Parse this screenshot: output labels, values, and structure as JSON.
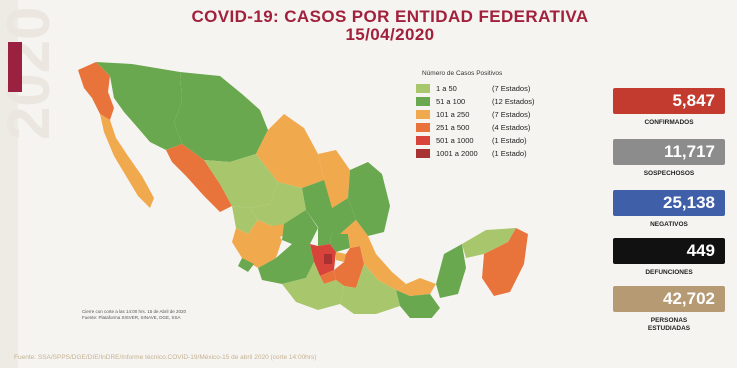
{
  "title_line1": "COVID-19: CASOS POR ENTIDAD FEDERATIVA",
  "title_line2": "15/04/2020",
  "legend": {
    "title": "Número de Casos Positivos",
    "items": [
      {
        "range": "1 a 50",
        "count": "(7 Estados)",
        "color": "#a8c66c"
      },
      {
        "range": "51 a 100",
        "count": "(12 Estados)",
        "color": "#6aa84f"
      },
      {
        "range": "101 a 250",
        "count": "(7 Estados)",
        "color": "#f1a94e"
      },
      {
        "range": "251 a 500",
        "count": "(4 Estados)",
        "color": "#e8743b"
      },
      {
        "range": "501 a 1000",
        "count": "(1 Estado)",
        "color": "#d9443a"
      },
      {
        "range": "1001 a 2000",
        "count": "(1 Estado)",
        "color": "#a83232"
      }
    ]
  },
  "stats": [
    {
      "value": "5,847",
      "label": "CONFIRMADOS",
      "color": "#c23b2e"
    },
    {
      "value": "11,717",
      "label": "SOSPECHOSOS",
      "color": "#8c8c8c"
    },
    {
      "value": "25,138",
      "label": "NEGATIVOS",
      "color": "#3f5fa8"
    },
    {
      "value": "449",
      "label": "DEFUNCIONES",
      "color": "#111111"
    },
    {
      "value": "42,702",
      "label_line1": "PERSONAS",
      "label_line2": "ESTUDIADAS",
      "color": "#b59a74"
    }
  ],
  "cut_note_line1": "Cierre con corte a las 14:00 hrs. 15 de Abril de 2020",
  "cut_note_line2": "Fuente: Plataforma SISVER, SINAVE, DGE, SSA",
  "footer": "Fuente: SSA/SPPS/DGE/DIE/InDRE/Informe técnico.COVID-19/México-15 de abril 2020 (corte 14:00hrs)",
  "watermark_text": "2020"
}
